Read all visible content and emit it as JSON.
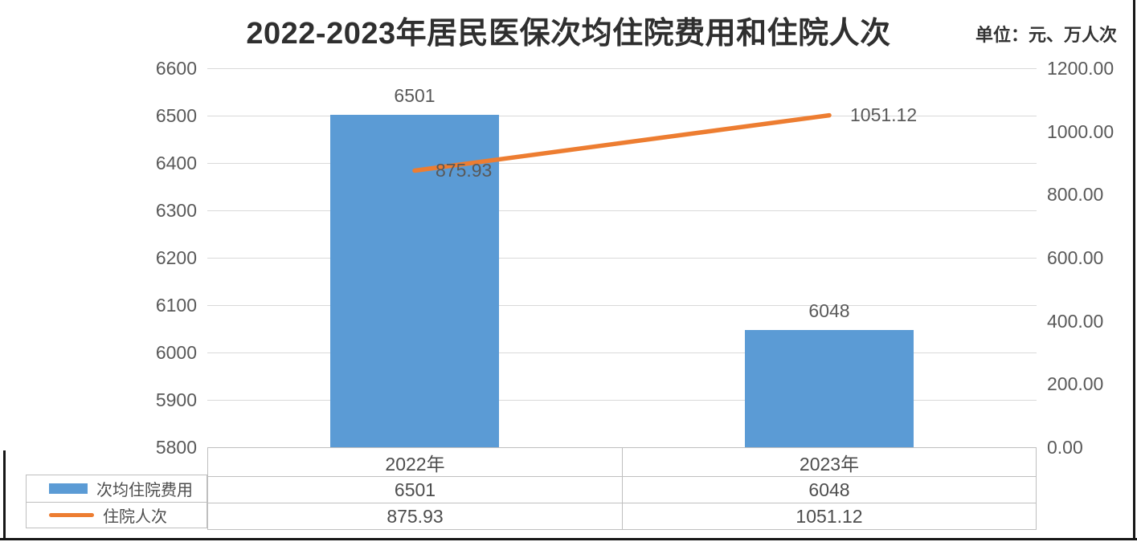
{
  "chart_data": {
    "type": "combo",
    "title": "2022-2023年居民医保次均住院费用和住院人次",
    "units": "单位：元、万人次",
    "categories": [
      "2022年",
      "2023年"
    ],
    "series": [
      {
        "name": "次均住院费用",
        "chart_type": "bar",
        "axis": "left",
        "color": "#5B9BD5",
        "values": [
          6501,
          6048
        ],
        "labels": [
          "6501",
          "6048"
        ]
      },
      {
        "name": "住院人次",
        "chart_type": "line",
        "axis": "right",
        "color": "#ED7D31",
        "values": [
          875.93,
          1051.12
        ],
        "labels": [
          "875.93",
          "1051.12"
        ]
      }
    ],
    "left_axis": {
      "min": 5800,
      "max": 6600,
      "ticks": [
        "5800",
        "5900",
        "6000",
        "6100",
        "6200",
        "6300",
        "6400",
        "6500",
        "6600"
      ]
    },
    "right_axis": {
      "min": 0,
      "max": 1200,
      "ticks": [
        "0.00",
        "200.00",
        "400.00",
        "600.00",
        "800.00",
        "1000.00",
        "1200.00"
      ]
    },
    "gridlines": true,
    "legend_position": "bottom-table-left",
    "colors": {
      "grid": "#D9D9D9",
      "table_border": "#BFBFBF",
      "tick_text": "#595959",
      "title_text": "#2F2F2F"
    }
  }
}
